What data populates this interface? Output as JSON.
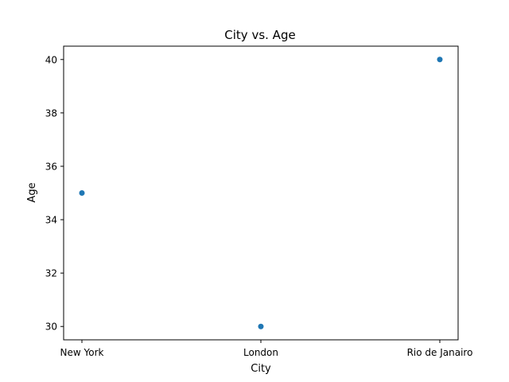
{
  "chart_data": {
    "type": "scatter",
    "title": "City vs. Age",
    "xlabel": "City",
    "ylabel": "Age",
    "categories": [
      "New York",
      "London",
      "Rio de Janairo"
    ],
    "series": [
      {
        "values": [
          35,
          30,
          40
        ],
        "color": "#1f77b4"
      }
    ],
    "ylim": [
      29.5,
      40.5
    ],
    "yticks": [
      "30",
      "32",
      "34",
      "36",
      "38",
      "40"
    ],
    "grid": false,
    "legend": "none"
  }
}
